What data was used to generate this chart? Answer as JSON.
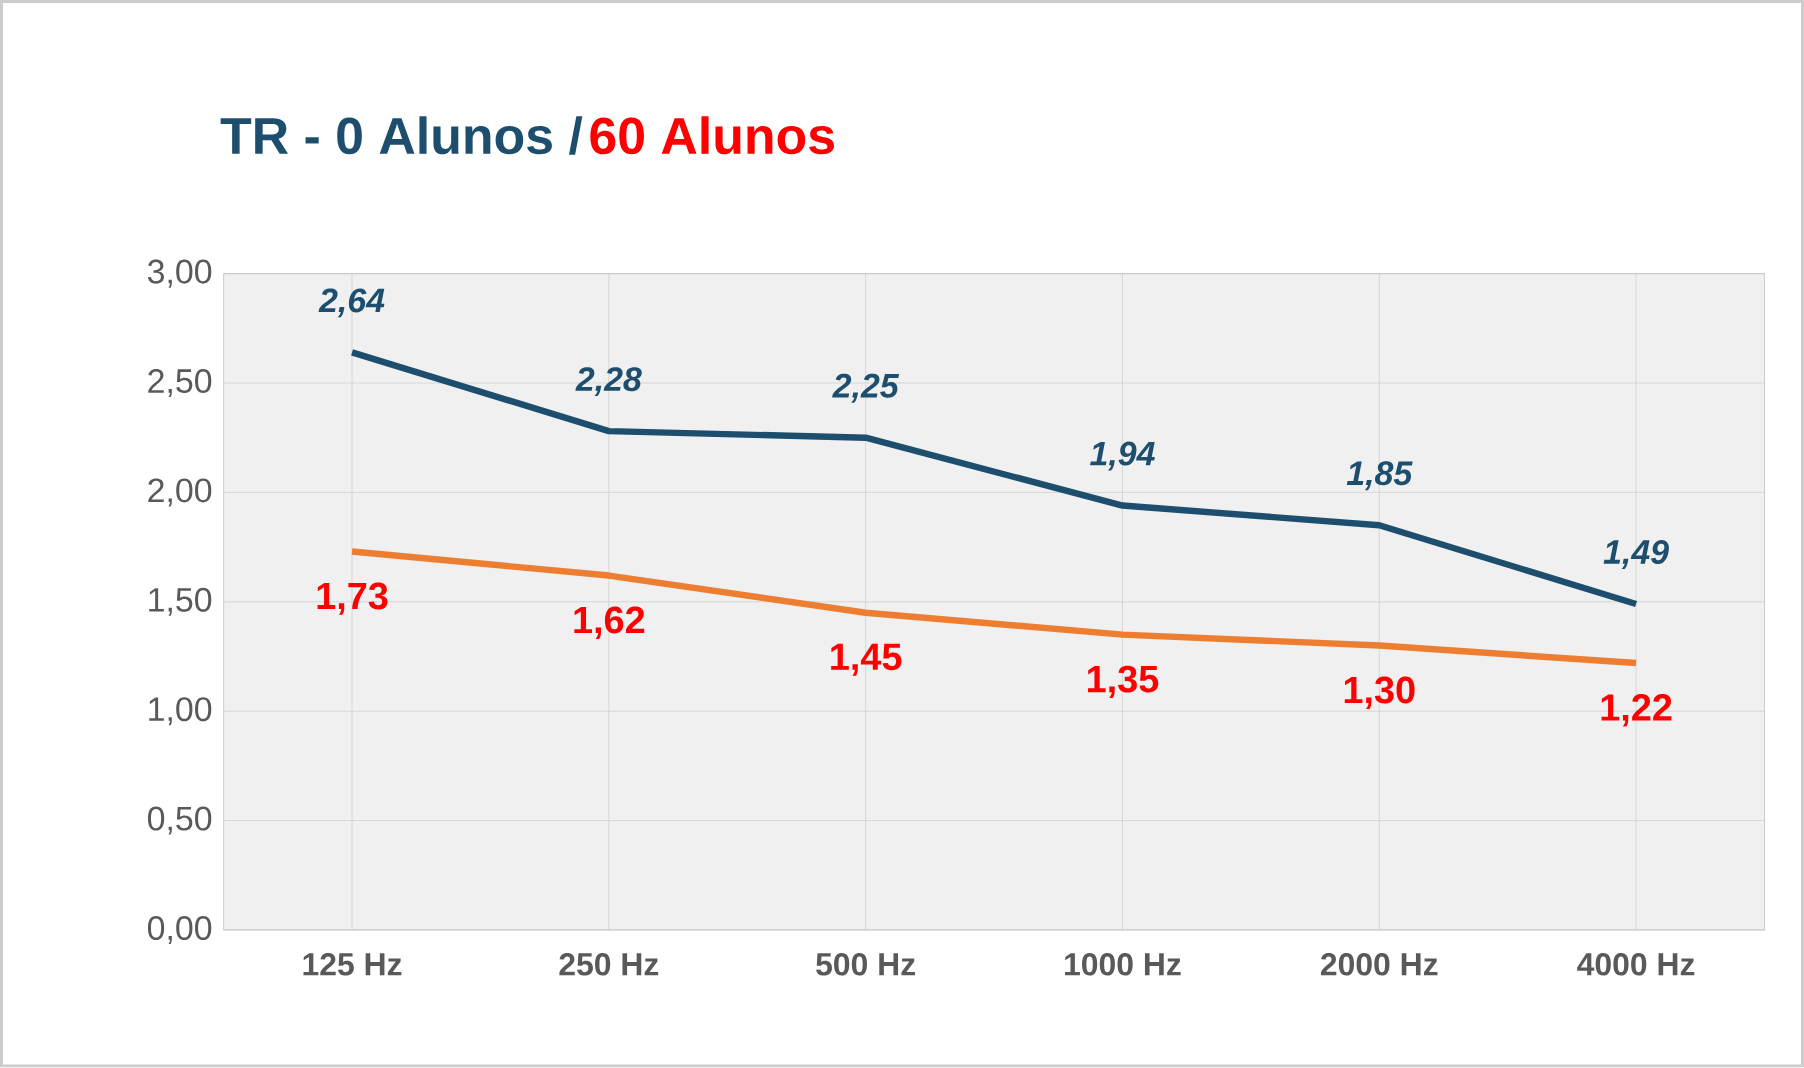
{
  "chart_data": {
    "type": "line",
    "title": "TR - 0 Alunos /",
    "categories": [
      "125 Hz",
      "250 Hz",
      "500 Hz",
      "1000 Hz",
      "2000 Hz",
      "4000 Hz"
    ],
    "series": [
      {
        "color": "#1d4e6e",
        "values": [
          2.64,
          2.28,
          2.25,
          1.94,
          1.85,
          1.49
        ],
        "value_labels": [
          "2,64",
          "2,28",
          "2,25",
          "1,94",
          "1,85",
          "1,49"
        ]
      },
      {
        "name": "60 Alunos",
        "color": "#ed7d31",
        "values": [
          1.73,
          1.62,
          1.45,
          1.35,
          1.3,
          1.22
        ],
        "value_labels": [
          "1,73",
          "1,62",
          "1,45",
          "1,35",
          "1,30",
          "1,22"
        ]
      }
    ],
    "ylim": [
      0,
      3
    ],
    "yticks": [
      {
        "value": 0,
        "label": "0,00"
      },
      {
        "value": 0.5,
        "label": "0,50"
      },
      {
        "value": 1,
        "label": "1,00"
      },
      {
        "value": 1.5,
        "label": "1,50"
      },
      {
        "value": 2,
        "label": "2,00"
      },
      {
        "value": 2.5,
        "label": "2,50"
      },
      {
        "value": 3,
        "label": "3,00"
      }
    ],
    "grid": true,
    "marker": "none",
    "line_style": "solid"
  }
}
